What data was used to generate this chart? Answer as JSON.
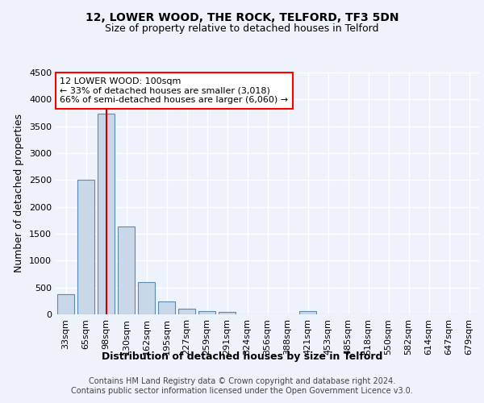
{
  "title": "12, LOWER WOOD, THE ROCK, TELFORD, TF3 5DN",
  "subtitle": "Size of property relative to detached houses in Telford",
  "xlabel": "Distribution of detached houses by size in Telford",
  "ylabel": "Number of detached properties",
  "categories": [
    "33sqm",
    "65sqm",
    "98sqm",
    "130sqm",
    "162sqm",
    "195sqm",
    "227sqm",
    "259sqm",
    "291sqm",
    "324sqm",
    "356sqm",
    "388sqm",
    "421sqm",
    "453sqm",
    "485sqm",
    "518sqm",
    "550sqm",
    "582sqm",
    "614sqm",
    "647sqm",
    "679sqm"
  ],
  "values": [
    380,
    2500,
    3730,
    1640,
    600,
    245,
    105,
    60,
    45,
    0,
    0,
    0,
    55,
    0,
    0,
    0,
    0,
    0,
    0,
    0,
    0
  ],
  "bar_color": "#c8d8e8",
  "bar_edge_color": "#5a8ab0",
  "red_line_index": 2,
  "annotation_text": "12 LOWER WOOD: 100sqm\n← 33% of detached houses are smaller (3,018)\n66% of semi-detached houses are larger (6,060) →",
  "annotation_box_color": "white",
  "annotation_box_edge_color": "red",
  "red_line_color": "#cc0000",
  "ylim": [
    0,
    4500
  ],
  "yticks": [
    0,
    500,
    1000,
    1500,
    2000,
    2500,
    3000,
    3500,
    4000,
    4500
  ],
  "title_fontsize": 10,
  "subtitle_fontsize": 9,
  "xlabel_fontsize": 9,
  "ylabel_fontsize": 9,
  "tick_fontsize": 8,
  "annotation_fontsize": 8,
  "footer_line1": "Contains HM Land Registry data © Crown copyright and database right 2024.",
  "footer_line2": "Contains public sector information licensed under the Open Government Licence v3.0.",
  "footer_fontsize": 7,
  "bg_color": "#eef2fb",
  "grid_color": "white"
}
